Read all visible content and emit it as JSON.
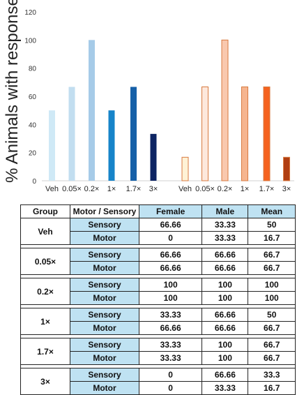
{
  "chart_data": {
    "type": "bar",
    "ylabel": "% Animals with response",
    "ylim": [
      0,
      120
    ],
    "yticks": [
      0,
      20,
      40,
      60,
      80,
      100,
      120
    ],
    "groups": [
      {
        "categories": [
          "Veh",
          "0.05×",
          "0.2×",
          "1×",
          "1.7×",
          "3×"
        ],
        "values": [
          50,
          66.7,
          100,
          50,
          66.7,
          33.3
        ],
        "colors": [
          "#cfe9f6",
          "#c2def0",
          "#a6cbe8",
          "#1784c9",
          "#1660a8",
          "#0d2463"
        ]
      },
      {
        "categories": [
          "Veh",
          "0.05×",
          "0.2×",
          "1×",
          "1.7×",
          "3×"
        ],
        "values": [
          16.7,
          66.7,
          100,
          66.7,
          66.7,
          16.7
        ],
        "colors": [
          "#fff2d6",
          "#fde8dc",
          "#f9c8ae",
          "#f6b58f",
          "#f5621f",
          "#b03e12"
        ],
        "outline": "#d87a40"
      }
    ]
  },
  "table": {
    "headers": [
      "Group",
      "Motor / Sensory",
      "Female",
      "Male",
      "Mean"
    ],
    "groups": [
      {
        "name": "Veh",
        "rows": [
          [
            "Sensory",
            "66.66",
            "33.33",
            "50"
          ],
          [
            "Motor",
            "0",
            "33.33",
            "16.7"
          ]
        ]
      },
      {
        "name": "0.05×",
        "rows": [
          [
            "Sensory",
            "66.66",
            "66.66",
            "66.7"
          ],
          [
            "Motor",
            "66.66",
            "66.66",
            "66.7"
          ]
        ]
      },
      {
        "name": "0.2×",
        "rows": [
          [
            "Sensory",
            "100",
            "100",
            "100"
          ],
          [
            "Motor",
            "100",
            "100",
            "100"
          ]
        ]
      },
      {
        "name": "1×",
        "rows": [
          [
            "Sensory",
            "33.33",
            "66.66",
            "50"
          ],
          [
            "Motor",
            "66.66",
            "66.66",
            "66.7"
          ]
        ]
      },
      {
        "name": "1.7×",
        "rows": [
          [
            "Sensory",
            "33.33",
            "100",
            "66.7"
          ],
          [
            "Motor",
            "33.33",
            "100",
            "66.7"
          ]
        ]
      },
      {
        "name": "3×",
        "rows": [
          [
            "Sensory",
            "0",
            "66.66",
            "33.3"
          ],
          [
            "Motor",
            "0",
            "33.33",
            "16.7"
          ]
        ]
      }
    ]
  }
}
